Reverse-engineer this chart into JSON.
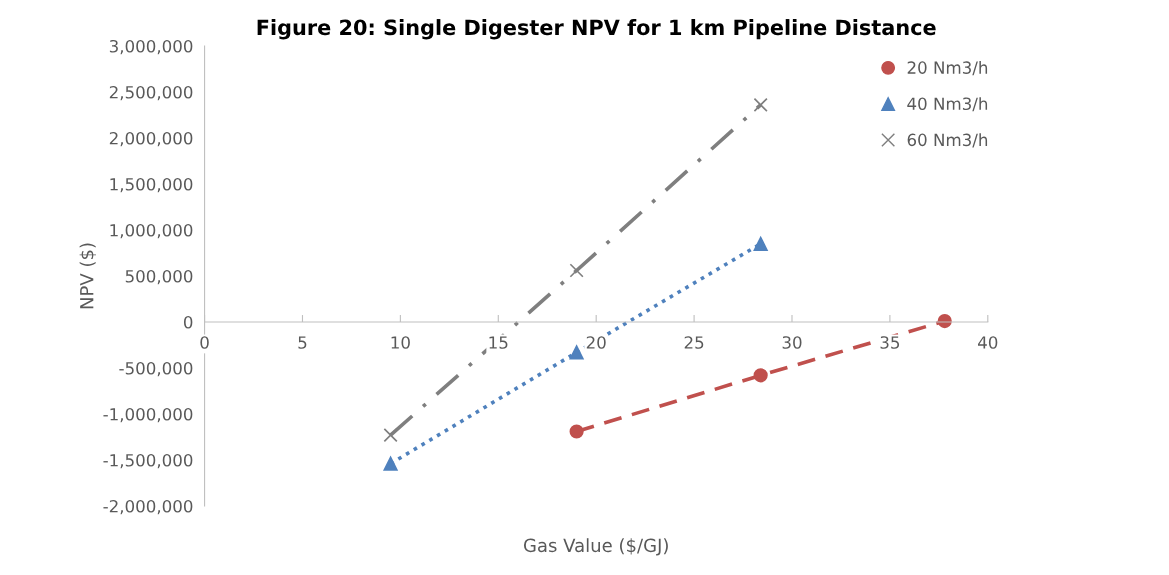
{
  "chart_data": {
    "type": "line",
    "title": "Figure 20: Single Digester NPV for 1 km Pipeline Distance",
    "xlabel": "Gas Value ($/GJ)",
    "ylabel": "NPV ($)",
    "series": [
      {
        "name": "20 Nm3/h",
        "color": "#c0504d",
        "x": [
          19,
          28.4,
          37.8
        ],
        "values": [
          -1190000,
          -580000,
          10000
        ],
        "marker": "circle",
        "line_style": "dashed"
      },
      {
        "name": "40 Nm3/h",
        "color": "#4f81bd",
        "x": [
          9.5,
          19,
          28.4
        ],
        "values": [
          -1540000,
          -330000,
          850000
        ],
        "marker": "triangle",
        "line_style": "dotted"
      },
      {
        "name": "60 Nm3/h",
        "color": "#7f7f7f",
        "x": [
          9.5,
          19,
          28.4
        ],
        "values": [
          -1230000,
          560000,
          2360000
        ],
        "marker": "cross",
        "line_style": "dashdot"
      }
    ],
    "xlim": [
      0,
      40
    ],
    "xticks": [
      0,
      5,
      10,
      15,
      20,
      25,
      30,
      35,
      40
    ],
    "ylim": [
      -2000000,
      3000000
    ],
    "yticks": [
      {
        "value": -2000000,
        "label": "-2,000,000"
      },
      {
        "value": -1500000,
        "label": "-1,500,000"
      },
      {
        "value": -1000000,
        "label": "-1,000,000"
      },
      {
        "value": -500000,
        "label": "-500,000"
      },
      {
        "value": 0,
        "label": "0"
      },
      {
        "value": 500000,
        "label": "500,000"
      },
      {
        "value": 1000000,
        "label": "1,000,000"
      },
      {
        "value": 1500000,
        "label": "1,500,000"
      },
      {
        "value": 2000000,
        "label": "2,000,000"
      },
      {
        "value": 2500000,
        "label": "2,500,000"
      },
      {
        "value": 3000000,
        "label": "3,000,000"
      }
    ],
    "grid": false,
    "legend": "top right"
  }
}
